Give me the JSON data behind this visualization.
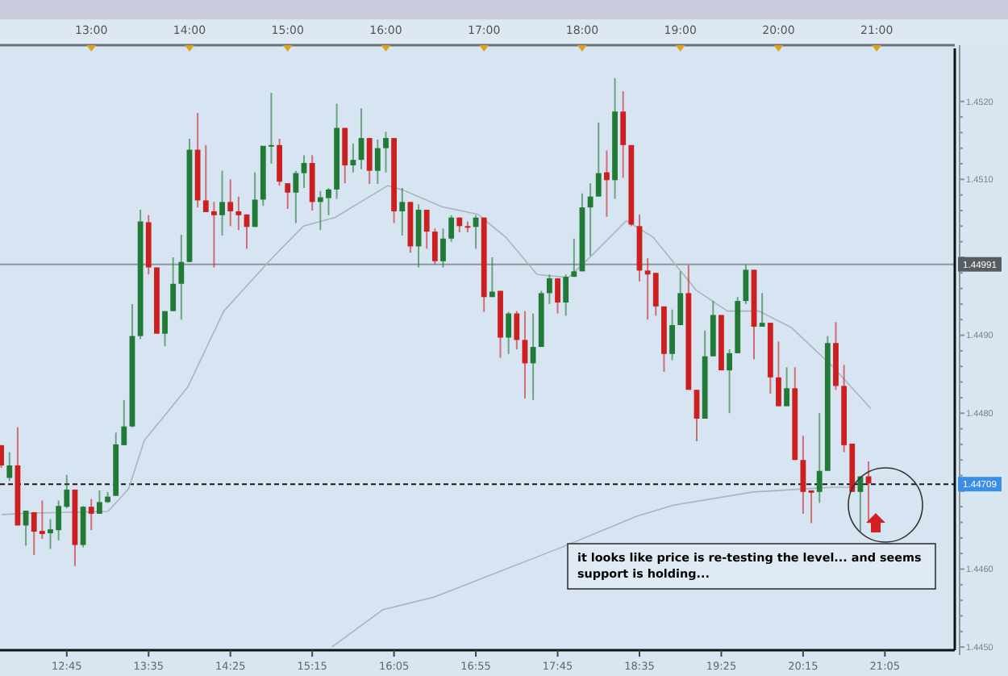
{
  "chart_data": {
    "type": "candlestick",
    "xlim": [
      12.07,
      21.795
    ],
    "ylim": [
      1.44496,
      1.45268
    ],
    "xticks": [
      {
        "value": 12.75,
        "label": "12:45"
      },
      {
        "value": 13.5833,
        "label": "13:35"
      },
      {
        "value": 14.4167,
        "label": "14:25"
      },
      {
        "value": 15.25,
        "label": "15:15"
      },
      {
        "value": 16.0833,
        "label": "16:05"
      },
      {
        "value": 16.9167,
        "label": "16:55"
      },
      {
        "value": 17.75,
        "label": "17:45"
      },
      {
        "value": 18.5833,
        "label": "18:35"
      },
      {
        "value": 19.4167,
        "label": "19:25"
      },
      {
        "value": 20.25,
        "label": "20:15"
      },
      {
        "value": 21.0833,
        "label": "21:05"
      }
    ],
    "x2lim": [
      12.07,
      21.795
    ],
    "x2ticks": [
      {
        "value": 13,
        "label": "13:00"
      },
      {
        "value": 14,
        "label": "14:00"
      },
      {
        "value": 15,
        "label": "15:00"
      },
      {
        "value": 16,
        "label": "16:00"
      },
      {
        "value": 17,
        "label": "17:00"
      },
      {
        "value": 18,
        "label": "18:00"
      },
      {
        "value": 19,
        "label": "19:00"
      },
      {
        "value": 20,
        "label": "20:00"
      },
      {
        "value": 21,
        "label": "21:00"
      }
    ],
    "yticks": [
      {
        "value": 1.445,
        "label": "1.4450"
      },
      {
        "value": 1.446,
        "label": "1.4460"
      },
      {
        "value": 1.447,
        "label": null
      },
      {
        "value": 1.448,
        "label": "1.4480"
      },
      {
        "value": 1.449,
        "label": "1.4490"
      },
      {
        "value": 1.45,
        "label": null
      },
      {
        "value": 1.451,
        "label": "1.4510"
      },
      {
        "value": 1.452,
        "label": "1.4520"
      }
    ],
    "colors": [
      "#cc1f1f",
      "#217a35",
      "#cc1f1f",
      "#217a35",
      "#cc1f1f",
      "#cc1f1f",
      "#217a35",
      "#217a35",
      "#217a35",
      "#cc1f1f",
      "#217a35",
      "#cc1f1f",
      "#217a35",
      "#217a35",
      "#217a35",
      "#217a35",
      "#217a35",
      "#217a35",
      "#cc1f1f",
      "#cc1f1f",
      "#217a35",
      "#217a35",
      "#217a35",
      "#217a35",
      "#cc1f1f",
      "#cc1f1f",
      "#cc1f1f",
      "#217a35",
      "#cc1f1f",
      "#cc1f1f",
      "#cc1f1f",
      "#217a35",
      "#217a35",
      "#217a35",
      "#cc1f1f",
      "#cc1f1f",
      "#217a35",
      "#217a35",
      "#cc1f1f",
      "#217a35",
      "#217a35",
      "#217a35",
      "#cc1f1f",
      "#217a35",
      "#217a35",
      "#cc1f1f",
      "#217a35",
      "#217a35",
      "#cc1f1f",
      "#217a35",
      "#cc1f1f",
      "#217a35",
      "#cc1f1f",
      "#cc1f1f",
      "#217a35",
      "#217a35",
      "#cc1f1f",
      "#cc1f1f",
      "#217a35",
      "#cc1f1f",
      "#217a35",
      "#cc1f1f",
      "#217a35",
      "#cc1f1f",
      "#cc1f1f",
      "#217a35",
      "#217a35",
      "#217a35",
      "#cc1f1f",
      "#217a35",
      "#217a35",
      "#217a35",
      "#217a35",
      "#217a35",
      "#cc1f1f",
      "#217a35",
      "#cc1f1f",
      "#cc1f1f",
      "#cc1f1f",
      "#cc1f1f",
      "#cc1f1f",
      "#cc1f1f",
      "#217a35",
      "#217a35",
      "#cc1f1f",
      "#cc1f1f",
      "#217a35",
      "#217a35",
      "#cc1f1f",
      "#217a35",
      "#217a35",
      "#217a35",
      "#cc1f1f",
      "#217a35",
      "#cc1f1f",
      "#cc1f1f",
      "#217a35",
      "#cc1f1f",
      "#cc1f1f",
      "#cc1f1f",
      "#217a35",
      "#217a35",
      "#cc1f1f",
      "#cc1f1f",
      "#cc1f1f",
      "#217a35",
      "#cc1f1f"
    ],
    "x": [
      12.0833,
      12.1667,
      12.25,
      12.3333,
      12.4167,
      12.5,
      12.5833,
      12.6667,
      12.75,
      12.8333,
      12.9167,
      13,
      13.0833,
      13.1667,
      13.25,
      13.3333,
      13.4167,
      13.5,
      13.5833,
      13.6667,
      13.75,
      13.8333,
      13.9167,
      14,
      14.0833,
      14.1667,
      14.25,
      14.3333,
      14.4167,
      14.5,
      14.5833,
      14.6667,
      14.75,
      14.8333,
      14.9167,
      15,
      15.0833,
      15.1667,
      15.25,
      15.3333,
      15.4167,
      15.5,
      15.5833,
      15.6667,
      15.75,
      15.8333,
      15.9167,
      16,
      16.0833,
      16.1667,
      16.25,
      16.3333,
      16.4167,
      16.5,
      16.5833,
      16.6667,
      16.75,
      16.8333,
      16.9167,
      17,
      17.0833,
      17.1667,
      17.25,
      17.3333,
      17.4167,
      17.5,
      17.5833,
      17.6667,
      17.75,
      17.8333,
      17.9167,
      18,
      18.0833,
      18.1667,
      18.25,
      18.3333,
      18.4167,
      18.5,
      18.5833,
      18.6667,
      18.75,
      18.8333,
      18.9167,
      19,
      19.0833,
      19.1667,
      19.25,
      19.3333,
      19.4167,
      19.5,
      19.5833,
      19.6667,
      19.75,
      19.8333,
      19.9167,
      20,
      20.0833,
      20.1667,
      20.25,
      20.3333,
      20.4167,
      20.5,
      20.5833,
      20.6667,
      20.75,
      20.8333,
      20.9167
    ],
    "ohlc": [
      [
        1.44759,
        1.44759,
        1.4473,
        1.44733
      ],
      [
        1.44717,
        1.4475,
        1.44713,
        1.44733
      ],
      [
        1.44733,
        1.44782,
        1.44656,
        1.44656
      ],
      [
        1.44656,
        1.44675,
        1.4463,
        1.44675
      ],
      [
        1.44673,
        1.44673,
        1.44618,
        1.44648
      ],
      [
        1.44649,
        1.44688,
        1.44639,
        1.44645
      ],
      [
        1.44646,
        1.44664,
        1.44626,
        1.44651
      ],
      [
        1.4465,
        1.44688,
        1.44637,
        1.44681
      ],
      [
        1.4468,
        1.44721,
        1.44678,
        1.44702
      ],
      [
        1.44702,
        1.44702,
        1.44604,
        1.44631
      ],
      [
        1.44631,
        1.44681,
        1.44628,
        1.4468
      ],
      [
        1.4468,
        1.4469,
        1.4465,
        1.44671
      ],
      [
        1.44671,
        1.44701,
        1.44671,
        1.44686
      ],
      [
        1.44686,
        1.44699,
        1.44685,
        1.44693
      ],
      [
        1.44694,
        1.44775,
        1.44694,
        1.4476
      ],
      [
        1.44759,
        1.44817,
        1.44759,
        1.44783
      ],
      [
        1.44783,
        1.4494,
        1.44782,
        1.44899
      ],
      [
        1.44899,
        1.45061,
        1.44895,
        1.45046
      ],
      [
        1.45045,
        1.45054,
        1.44978,
        1.44987
      ],
      [
        1.44987,
        1.44987,
        1.44902,
        1.44902
      ],
      [
        1.44902,
        1.44931,
        1.44886,
        1.44931
      ],
      [
        1.44931,
        1.45,
        1.44931,
        1.44966
      ],
      [
        1.44966,
        1.45029,
        1.4492,
        1.44994
      ],
      [
        1.44994,
        1.45152,
        1.44994,
        1.45138
      ],
      [
        1.45138,
        1.45185,
        1.45064,
        1.45073
      ],
      [
        1.45073,
        1.45144,
        1.45058,
        1.45058
      ],
      [
        1.45059,
        1.45071,
        1.44987,
        1.45054
      ],
      [
        1.45054,
        1.45111,
        1.45028,
        1.45071
      ],
      [
        1.45071,
        1.451,
        1.4504,
        1.45059
      ],
      [
        1.45059,
        1.45078,
        1.45035,
        1.45054
      ],
      [
        1.45055,
        1.45055,
        1.45011,
        1.45039
      ],
      [
        1.45039,
        1.45109,
        1.45039,
        1.45074
      ],
      [
        1.45074,
        1.45143,
        1.45066,
        1.45143
      ],
      [
        1.45142,
        1.45211,
        1.4512,
        1.45144
      ],
      [
        1.45144,
        1.45152,
        1.45092,
        1.45097
      ],
      [
        1.45095,
        1.45095,
        1.45062,
        1.45083
      ],
      [
        1.45083,
        1.45111,
        1.45044,
        1.45108
      ],
      [
        1.45108,
        1.45131,
        1.45089,
        1.45121
      ],
      [
        1.45121,
        1.45131,
        1.4506,
        1.45071
      ],
      [
        1.45071,
        1.45085,
        1.45035,
        1.45077
      ],
      [
        1.45076,
        1.45089,
        1.45054,
        1.45087
      ],
      [
        1.45087,
        1.45197,
        1.45075,
        1.45166
      ],
      [
        1.45166,
        1.45166,
        1.45095,
        1.45118
      ],
      [
        1.45118,
        1.45146,
        1.45109,
        1.45125
      ],
      [
        1.45125,
        1.45191,
        1.45113,
        1.45153
      ],
      [
        1.45153,
        1.45153,
        1.45094,
        1.45111
      ],
      [
        1.45111,
        1.45151,
        1.45094,
        1.4514
      ],
      [
        1.4514,
        1.45161,
        1.45109,
        1.45153
      ],
      [
        1.45153,
        1.45153,
        1.45044,
        1.45059
      ],
      [
        1.45059,
        1.45089,
        1.45028,
        1.45071
      ],
      [
        1.45071,
        1.45071,
        1.45006,
        1.45014
      ],
      [
        1.45014,
        1.45068,
        1.44987,
        1.45061
      ],
      [
        1.45061,
        1.45061,
        1.45011,
        1.45033
      ],
      [
        1.45033,
        1.45037,
        1.44991,
        1.44995
      ],
      [
        1.44995,
        1.45037,
        1.44987,
        1.45024
      ],
      [
        1.45024,
        1.45054,
        1.4502,
        1.45051
      ],
      [
        1.45051,
        1.45051,
        1.45032,
        1.4504
      ],
      [
        1.4504,
        1.45046,
        1.45032,
        1.45039
      ],
      [
        1.45039,
        1.45054,
        1.45011,
        1.45051
      ],
      [
        1.45051,
        1.45051,
        1.4493,
        1.44949
      ],
      [
        1.44949,
        1.45,
        1.44949,
        1.44956
      ],
      [
        1.44957,
        1.44957,
        1.44871,
        1.44897
      ],
      [
        1.44897,
        1.4493,
        1.44876,
        1.44928
      ],
      [
        1.44928,
        1.44931,
        1.44882,
        1.44894
      ],
      [
        1.44894,
        1.44931,
        1.44819,
        1.44864
      ],
      [
        1.44864,
        1.44928,
        1.44817,
        1.44885
      ],
      [
        1.44885,
        1.44957,
        1.44885,
        1.44954
      ],
      [
        1.44954,
        1.44978,
        1.4494,
        1.44973
      ],
      [
        1.44973,
        1.44973,
        1.44928,
        1.44942
      ],
      [
        1.44942,
        1.44978,
        1.44925,
        1.44975
      ],
      [
        1.44975,
        1.45024,
        1.44975,
        1.44982
      ],
      [
        1.44982,
        1.45082,
        1.44982,
        1.45064
      ],
      [
        1.45064,
        1.45095,
        1.45002,
        1.45078
      ],
      [
        1.45078,
        1.45173,
        1.45078,
        1.45108
      ],
      [
        1.45109,
        1.45137,
        1.45052,
        1.45099
      ],
      [
        1.45099,
        1.4523,
        1.45075,
        1.45187
      ],
      [
        1.45187,
        1.45213,
        1.45102,
        1.45144
      ],
      [
        1.45144,
        1.45144,
        1.4504,
        1.45042
      ],
      [
        1.4504,
        1.45055,
        1.44969,
        1.44983
      ],
      [
        1.44983,
        1.44999,
        1.4492,
        1.44978
      ],
      [
        1.4498,
        1.4498,
        1.44925,
        1.44937
      ],
      [
        1.44937,
        1.44937,
        1.44853,
        1.44876
      ],
      [
        1.44876,
        1.44933,
        1.44868,
        1.44913
      ],
      [
        1.44913,
        1.44982,
        1.44913,
        1.44954
      ],
      [
        1.44954,
        1.4499,
        1.4483,
        1.4483
      ],
      [
        1.4483,
        1.4483,
        1.44764,
        1.44793
      ],
      [
        1.44793,
        1.44906,
        1.44793,
        1.44873
      ],
      [
        1.44873,
        1.44944,
        1.44873,
        1.44926
      ],
      [
        1.44926,
        1.44926,
        1.44855,
        1.44855
      ],
      [
        1.44855,
        1.44882,
        1.448,
        1.44877
      ],
      [
        1.44877,
        1.44949,
        1.44877,
        1.44944
      ],
      [
        1.44944,
        1.44991,
        1.4494,
        1.44984
      ],
      [
        1.44984,
        1.44984,
        1.44869,
        1.44911
      ],
      [
        1.44911,
        1.44954,
        1.44911,
        1.44916
      ],
      [
        1.44916,
        1.44916,
        1.44825,
        1.44846
      ],
      [
        1.44846,
        1.44892,
        1.44809,
        1.44809
      ],
      [
        1.44809,
        1.44859,
        1.44809,
        1.44832
      ],
      [
        1.44832,
        1.44859,
        1.4474,
        1.4474
      ],
      [
        1.4474,
        1.44771,
        1.44671,
        1.44699
      ],
      [
        1.44701,
        1.44701,
        1.44659,
        1.44698
      ],
      [
        1.44699,
        1.448,
        1.44685,
        1.44726
      ],
      [
        1.44726,
        1.44899,
        1.44726,
        1.4489
      ],
      [
        1.4489,
        1.44917,
        1.4483,
        1.44835
      ],
      [
        1.44835,
        1.44862,
        1.4475,
        1.44759
      ],
      [
        1.44761,
        1.44761,
        1.44699,
        1.44699
      ],
      [
        1.44699,
        1.44719,
        1.44648,
        1.44719
      ],
      [
        1.44719,
        1.44738,
        1.44659,
        1.4471
      ]
    ],
    "series": [
      {
        "type": "line",
        "color": "#aab4bc",
        "x": [
          12.087,
          12.41,
          13.17,
          13.38,
          13.54,
          13.98,
          14.35,
          14.84,
          15.16,
          15.48,
          16.02,
          16.18,
          16.57,
          16.94,
          17.22,
          17.54,
          17.86,
          18.12,
          18.45,
          18.72,
          19.16,
          19.48,
          19.8,
          20.13,
          20.55,
          20.94
        ],
        "values": [
          1.4467,
          1.44672,
          1.44674,
          1.44703,
          1.44765,
          1.44833,
          1.44931,
          1.44999,
          1.4504,
          1.45051,
          1.45092,
          1.45086,
          1.45065,
          1.45055,
          1.45026,
          1.44978,
          1.44974,
          1.45005,
          1.45047,
          1.45026,
          1.44958,
          1.44931,
          1.44931,
          1.4491,
          1.4486,
          1.44806
        ]
      },
      {
        "type": "line",
        "color": "#aab4bc",
        "x": [
          15.45,
          15.97,
          16.49,
          17.75,
          18.56,
          18.93,
          19.74,
          20.55,
          20.79
        ],
        "values": [
          1.445,
          1.44548,
          1.44564,
          1.44626,
          1.44668,
          1.44682,
          1.44699,
          1.44705,
          1.44705
        ]
      }
    ],
    "ref_lines": [
      {
        "axis": "y",
        "value": 1.44991,
        "label": "1.44991",
        "color": "#8c969c",
        "line_style": "solid"
      },
      {
        "axis": "y",
        "value": 1.44709,
        "label": "1.44709",
        "color": "#1a1a1a",
        "line_style": "dashed"
      }
    ],
    "annotations": [
      "it looks like price is re-testing the level...  and seems support is holding..."
    ]
  }
}
